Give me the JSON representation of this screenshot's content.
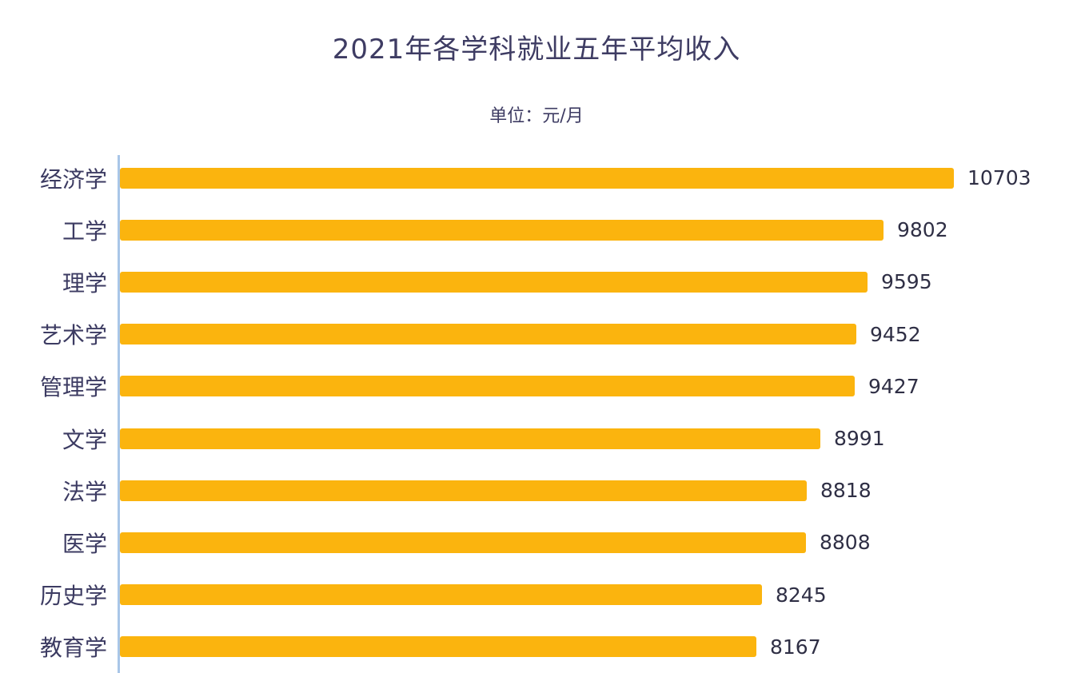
{
  "chart": {
    "title": "2021年各学科就业五年平均收入",
    "subtitle": "单位：元/月"
  },
  "chart_data": {
    "type": "bar",
    "orientation": "horizontal",
    "title": "2021年各学科就业五年平均收入",
    "subtitle": "单位：元/月",
    "unit": "元/月",
    "categories": [
      "经济学",
      "工学",
      "理学",
      "艺术学",
      "管理学",
      "文学",
      "法学",
      "医学",
      "历史学",
      "教育学"
    ],
    "values": [
      10703,
      9802,
      9595,
      9452,
      9427,
      8991,
      8818,
      8808,
      8245,
      8167
    ],
    "xlabel": "",
    "ylabel": "",
    "xlim": [
      0,
      10703
    ],
    "grid": false,
    "legend_position": "none",
    "data_labels": true,
    "bar_color": "#fbb40e",
    "axis_line_color": "#a9c6e8",
    "text_color": "#3e3c63",
    "background_color": "#ffffff"
  }
}
